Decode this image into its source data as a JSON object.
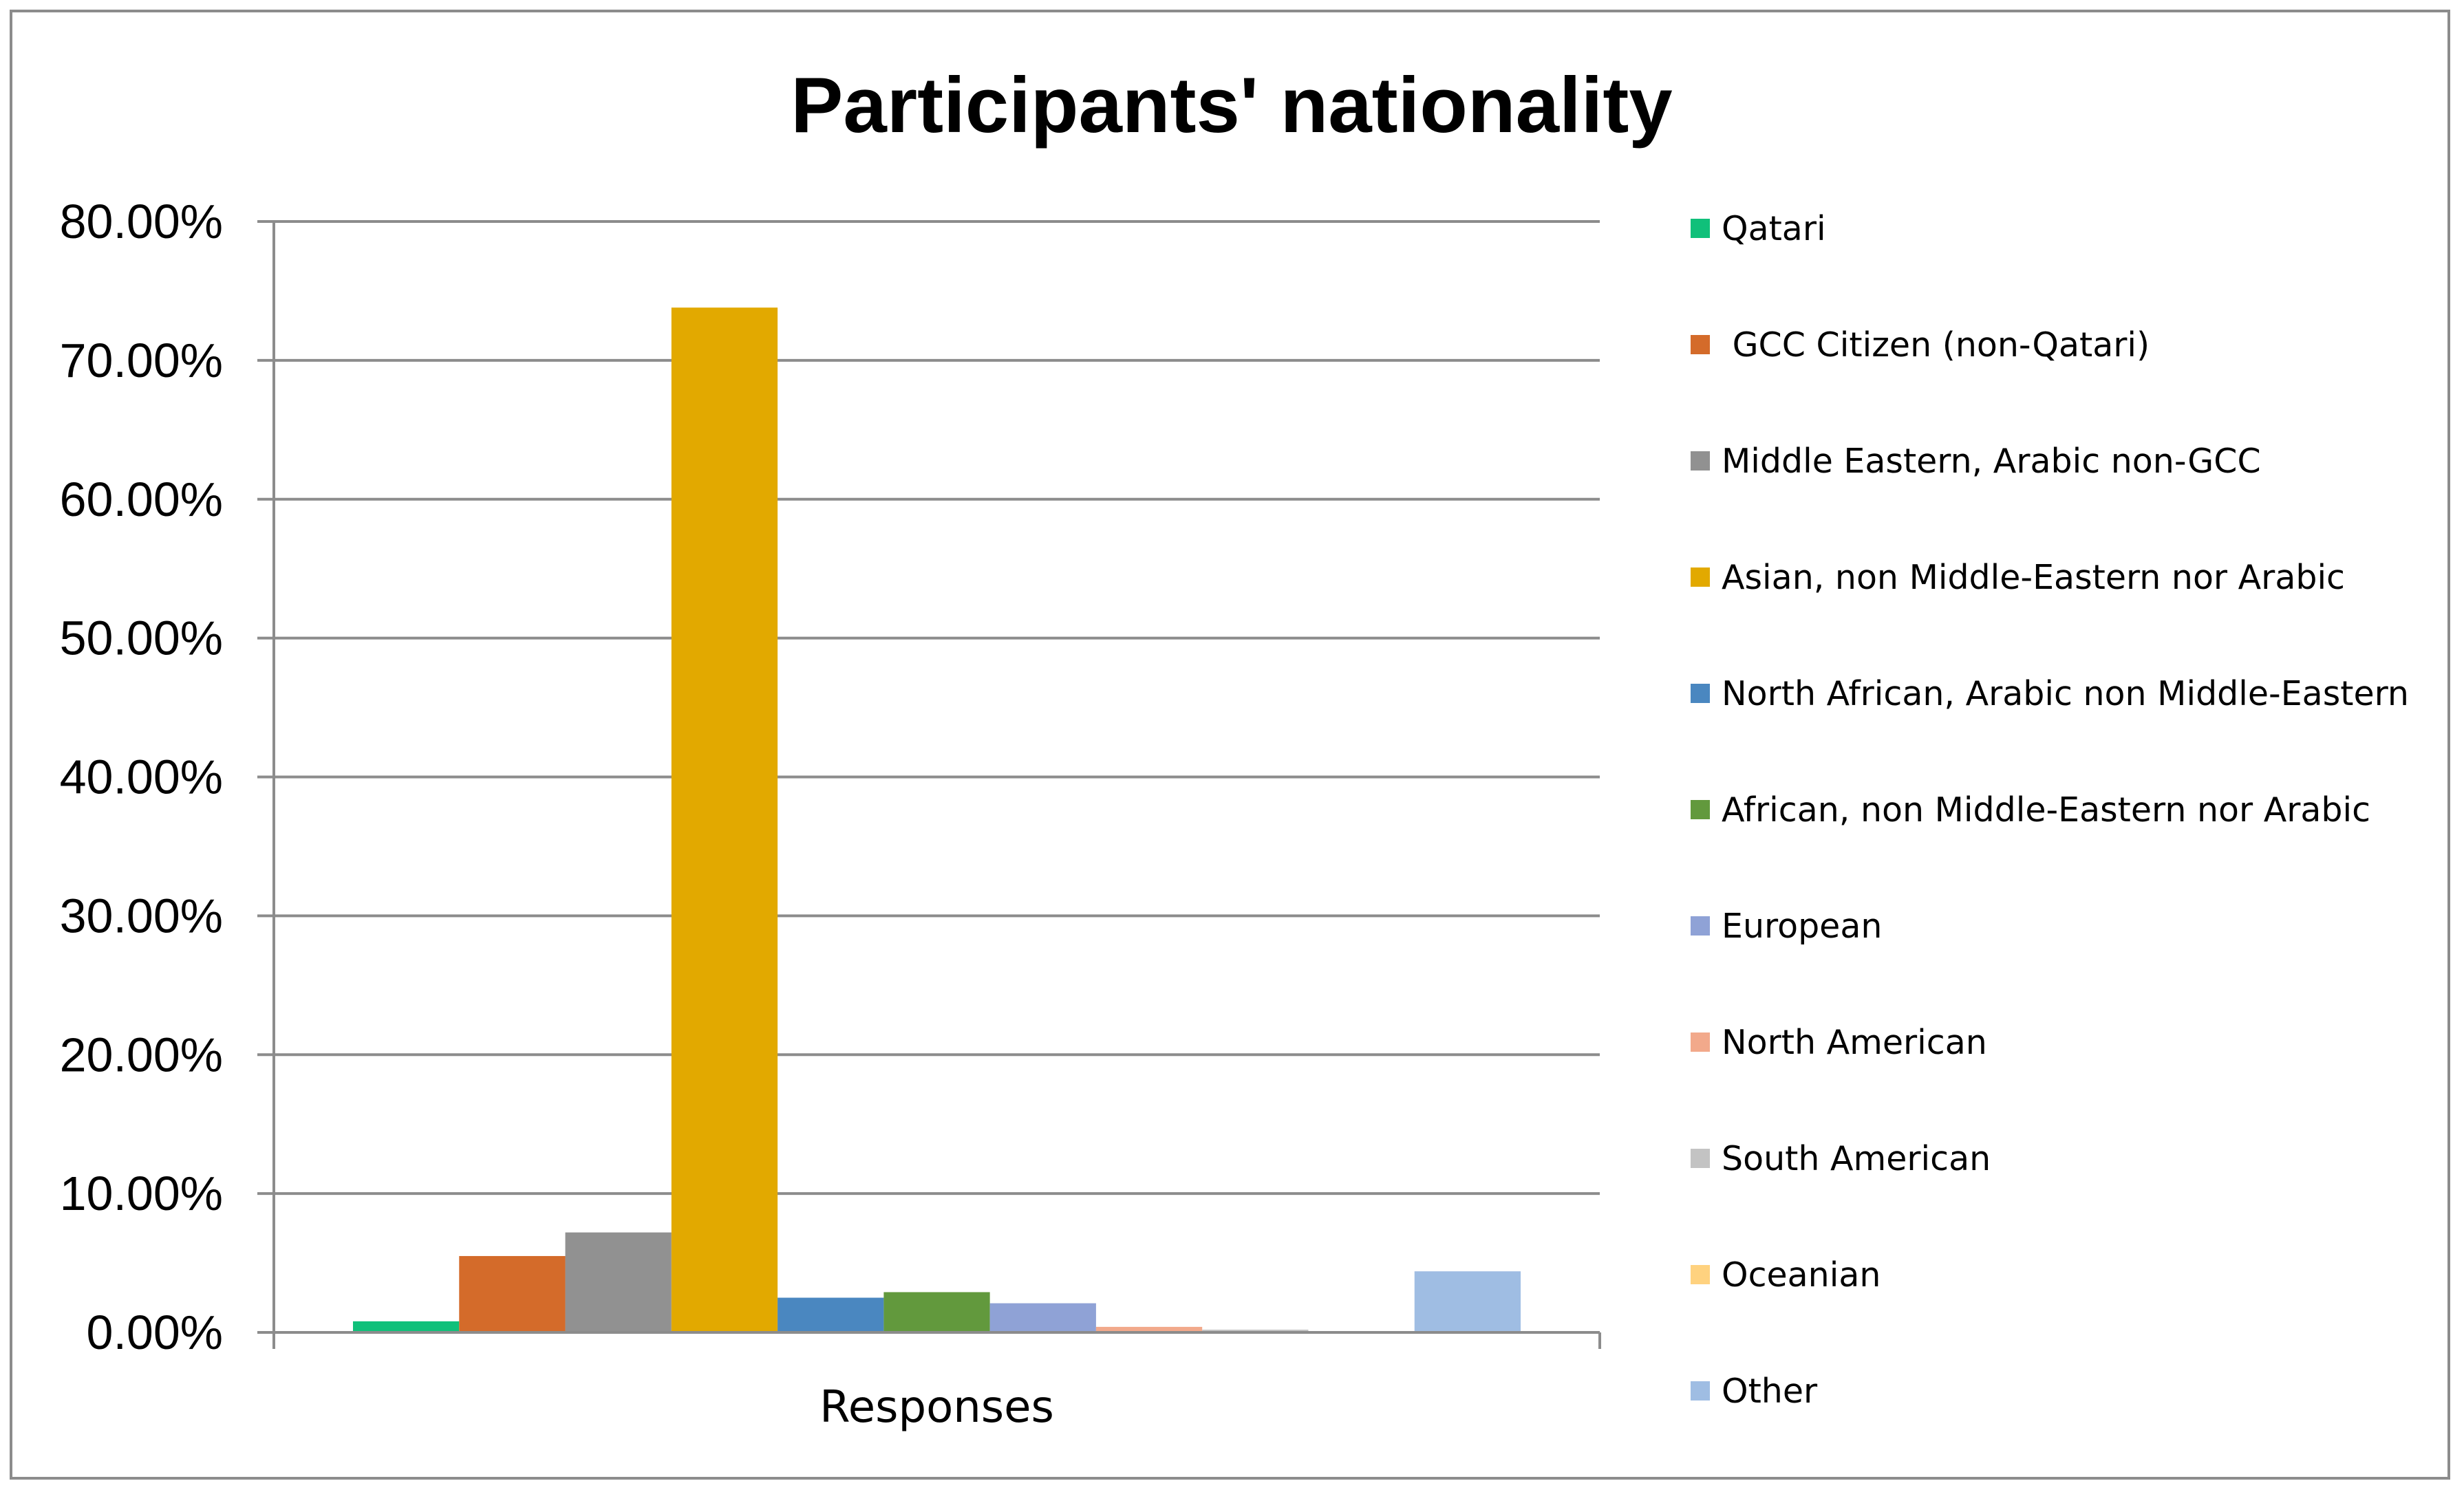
{
  "chart_data": {
    "type": "bar",
    "title": "Participants' nationality",
    "xlabel": "",
    "ylabel": "",
    "categories": [
      "Responses"
    ],
    "ylim": [
      0,
      0.8
    ],
    "yticks": [
      0,
      0.1,
      0.2,
      0.3,
      0.4,
      0.5,
      0.6,
      0.7,
      0.8
    ],
    "ytick_labels": [
      "0.00%",
      "10.00%",
      "20.00%",
      "30.00%",
      "40.00%",
      "50.00%",
      "60.00%",
      "70.00%",
      "80.00%"
    ],
    "grid": true,
    "legend_position": "right",
    "series": [
      {
        "name": "Qatari",
        "values": [
          0.008
        ],
        "color": "#10c07a"
      },
      {
        "name": " GCC Citizen (non-Qatari)",
        "values": [
          0.055
        ],
        "color": "#d46b2a"
      },
      {
        "name": "Middle Eastern, Arabic non-GCC",
        "values": [
          0.072
        ],
        "color": "#919191"
      },
      {
        "name": "Asian, non Middle-Eastern nor Arabic",
        "values": [
          0.738
        ],
        "color": "#e2a900"
      },
      {
        "name": "North African, Arabic non Middle-Eastern",
        "values": [
          0.025
        ],
        "color": "#4a87c0"
      },
      {
        "name": "African, non Middle-Eastern nor Arabic",
        "values": [
          0.029
        ],
        "color": "#62993d"
      },
      {
        "name": "European",
        "values": [
          0.021
        ],
        "color": "#8fa2d6"
      },
      {
        "name": "North American",
        "values": [
          0.004
        ],
        "color": "#f2a98b"
      },
      {
        "name": "South American",
        "values": [
          0.002
        ],
        "color": "#c3c3c3"
      },
      {
        "name": "Oceanian",
        "values": [
          0.0
        ],
        "color": "#ffd27f"
      },
      {
        "name": "Other",
        "values": [
          0.044
        ],
        "color": "#9fbde3"
      }
    ]
  }
}
